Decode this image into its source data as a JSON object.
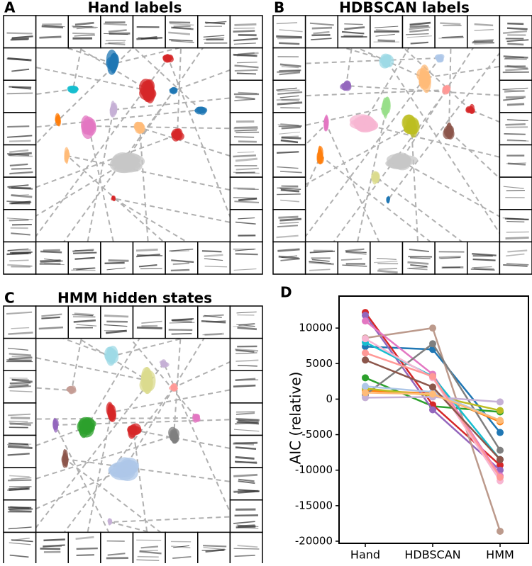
{
  "panels": [
    {
      "label": "A",
      "title": "Hand labels"
    },
    {
      "label": "B",
      "title": "HDBSCAN labels"
    },
    {
      "label": "C",
      "title": "HMM hidden states"
    }
  ],
  "chart_data": {
    "type": "line",
    "label": "D",
    "ylabel": "AIC (relative)",
    "categories": [
      "Hand",
      "HDBSCAN",
      "HMM"
    ],
    "ylim": [
      -20300,
      14500
    ],
    "yticks": [
      -20000,
      -15000,
      -10000,
      -5000,
      0,
      5000,
      10000
    ],
    "series": [
      {
        "color": "#1f77b4",
        "values": [
          7400,
          7000,
          -4700
        ]
      },
      {
        "color": "#ff7f0e",
        "values": [
          1200,
          800,
          -3200
        ]
      },
      {
        "color": "#2ca02c",
        "values": [
          3000,
          -1000,
          -1800
        ]
      },
      {
        "color": "#d62728",
        "values": [
          12200,
          -800,
          -9300
        ]
      },
      {
        "color": "#9467bd",
        "values": [
          11800,
          -1500,
          -10000
        ]
      },
      {
        "color": "#bc9a8c",
        "values": [
          8600,
          10000,
          -18600
        ]
      },
      {
        "color": "#e377c2",
        "values": [
          11000,
          3500,
          -10800
        ]
      },
      {
        "color": "#7f7f7f",
        "values": [
          600,
          7800,
          -7200
        ]
      },
      {
        "color": "#bcbd22",
        "values": [
          1500,
          500,
          -1600
        ]
      },
      {
        "color": "#17becf",
        "values": [
          8000,
          3200,
          -8500
        ]
      },
      {
        "color": "#aec7e8",
        "values": [
          1800,
          1000,
          -3000
        ]
      },
      {
        "color": "#c5b0d5",
        "values": [
          200,
          300,
          -400
        ]
      },
      {
        "color": "#f7b6d2",
        "values": [
          8500,
          3000,
          -11500
        ]
      },
      {
        "color": "#ff9896",
        "values": [
          6500,
          3200,
          -11000
        ]
      },
      {
        "color": "#8c564b",
        "values": [
          5500,
          1700,
          -8500
        ]
      },
      {
        "color": "#ffbb78",
        "values": [
          900,
          700,
          -3000
        ]
      }
    ]
  }
}
